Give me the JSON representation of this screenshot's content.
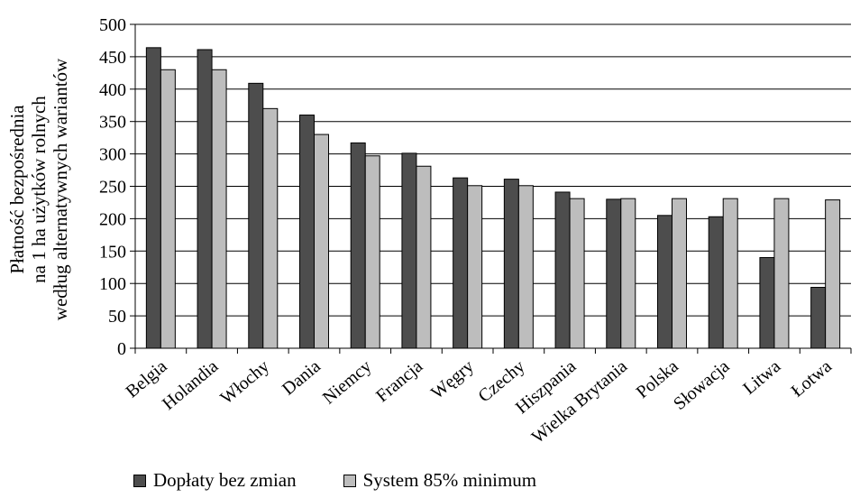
{
  "chart_data": {
    "type": "bar",
    "ylabel_lines": [
      "Płatność bezpośrednia",
      "na 1 ha użytków rolnych",
      "według alternatywnych wariantów"
    ],
    "categories": [
      "Belgia",
      "Holandia",
      "Włochy",
      "Dania",
      "Niemcy",
      "Francja",
      "Węgry",
      "Czechy",
      "Hiszpania",
      "Wielka Brytania",
      "Polska",
      "Słowacja",
      "Litwa",
      "Łotwa"
    ],
    "series": [
      {
        "name": "Dopłaty bez zmian",
        "color": "#4d4d4d",
        "values": [
          464,
          461,
          409,
          360,
          317,
          301,
          263,
          261,
          241,
          230,
          205,
          203,
          140,
          94
        ]
      },
      {
        "name": "System 85% minimum",
        "color": "#bdbdbd",
        "values": [
          430,
          430,
          370,
          330,
          297,
          281,
          251,
          251,
          231,
          231,
          231,
          231,
          231,
          229
        ]
      }
    ],
    "ylim": [
      0,
      500
    ],
    "yticks": [
      0,
      50,
      100,
      150,
      200,
      250,
      300,
      350,
      400,
      450,
      500
    ],
    "grid": true,
    "legend_position": "bottom"
  }
}
